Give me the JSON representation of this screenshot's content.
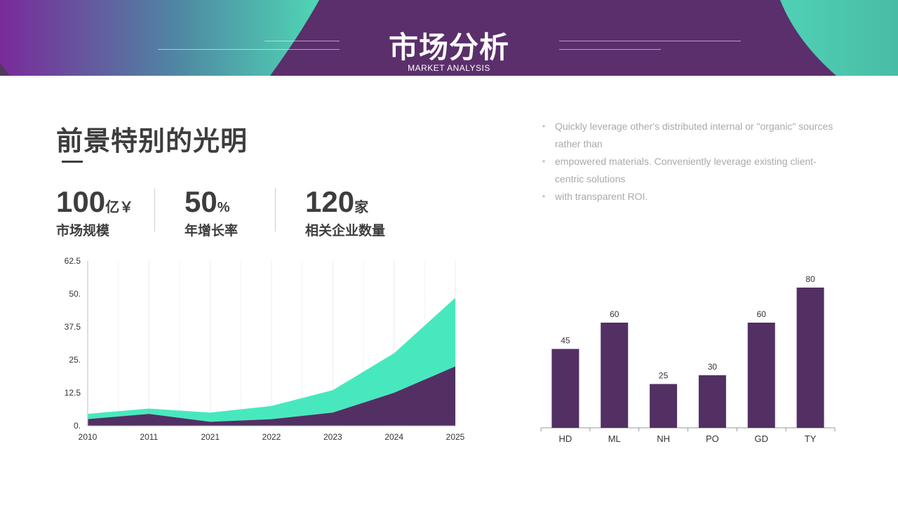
{
  "header": {
    "title": "市场分析",
    "subtitle": "MARKET ANALYSIS",
    "colors": {
      "base": "#5b2e6c",
      "teal": "#4fd1b5",
      "purple_glow": "#7a2a9a"
    }
  },
  "headline": "前景特别的光明",
  "stats": [
    {
      "value": "100",
      "unit": "亿￥",
      "label": "市场规模"
    },
    {
      "value": "50",
      "unit": "%",
      "label": "年增长率"
    },
    {
      "value": "120",
      "unit": "家",
      "label": "相关企业数量"
    }
  ],
  "bullets": [
    "Quickly leverage other's distributed internal or \"organic\" sources rather than",
    "empowered materials. Conveniently leverage existing client-centric solutions",
    "with transparent ROI."
  ],
  "chart_data": [
    {
      "type": "area",
      "stacked": true,
      "categories": [
        "2010",
        "2011",
        "2021",
        "2022",
        "2023",
        "2024",
        "2025"
      ],
      "series": [
        {
          "values": [
            2.5,
            4.5,
            1.5,
            2.5,
            5,
            12.5,
            22.5
          ],
          "color": "#523063"
        },
        {
          "values": [
            2,
            2,
            3.5,
            5,
            8.5,
            15,
            26
          ],
          "color": "#48e8be"
        }
      ],
      "yticks": [
        "0.",
        "12.5",
        "25.",
        "37.5",
        "50.",
        "62.5"
      ],
      "ylim": [
        0,
        62.5
      ],
      "grid": "vertical"
    },
    {
      "type": "bar",
      "categories": [
        "HD",
        "ML",
        "NH",
        "PO",
        "GD",
        "TY"
      ],
      "values": [
        45,
        60,
        25,
        30,
        60,
        80
      ],
      "data_labels": [
        "45",
        "60",
        "25",
        "30",
        "60",
        "80"
      ],
      "color": "#523063",
      "ylim": [
        0,
        92
      ]
    }
  ]
}
